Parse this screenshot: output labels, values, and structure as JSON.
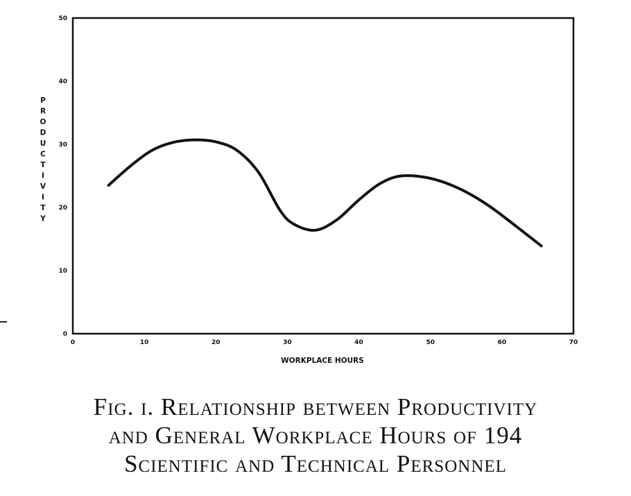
{
  "chart_data": {
    "type": "line",
    "title": "",
    "xlabel": "WORKPLACE HOURS",
    "ylabel": "PRODUCTIVITY",
    "xlim": [
      0,
      70
    ],
    "ylim": [
      0,
      50
    ],
    "x_ticks": [
      "0",
      "10",
      "20",
      "30",
      "40",
      "50",
      "60",
      "70"
    ],
    "y_ticks": [
      "0",
      "10",
      "20",
      "30",
      "40",
      "50"
    ],
    "grid": false,
    "series": [
      {
        "x": [
          5,
          8,
          11,
          14,
          17,
          20,
          23,
          26,
          29,
          31,
          34,
          37,
          40,
          43,
          46,
          50,
          54,
          58,
          62,
          65.5
        ],
        "y": [
          23.5,
          26.5,
          29,
          30.3,
          30.7,
          30.4,
          29,
          25.5,
          19.5,
          17.3,
          16.4,
          18.1,
          21.2,
          23.8,
          25,
          24.6,
          23,
          20.4,
          17,
          13.9
        ]
      }
    ]
  },
  "caption": {
    "line1": "Fig. i.  Relationship between Productivity",
    "line2": "and General Workplace Hours of 194",
    "line3": "Scientific and Technical Personnel"
  }
}
